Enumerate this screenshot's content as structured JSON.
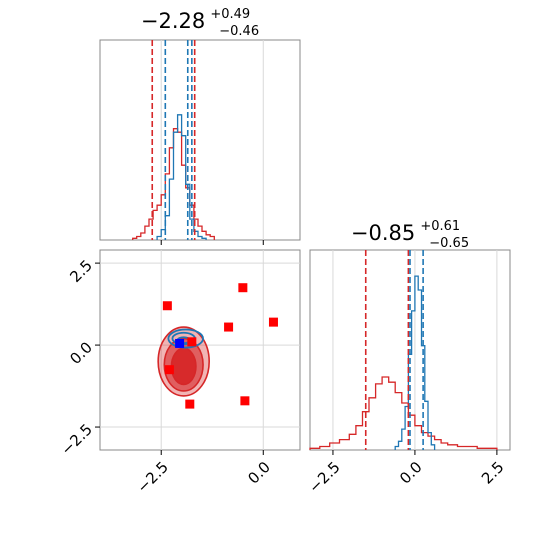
{
  "chart_data": {
    "type": "corner",
    "parameters": [
      {
        "title": {
          "median": "−2.28",
          "plus": "+0.49",
          "minus": "−0.46"
        },
        "range": [
          -4.0,
          0.9
        ],
        "ticks": [
          {
            "value": -2.5,
            "label": "−2.5"
          },
          {
            "value": 0.0,
            "label": "0.0"
          }
        ],
        "quantiles": {
          "red": [
            -2.72,
            -1.68
          ],
          "blue": [
            -2.4,
            -1.85,
            -1.75
          ]
        }
      },
      {
        "title": {
          "median": "−0.85",
          "plus": "+0.61",
          "minus": "−0.65"
        },
        "range": [
          -3.2,
          2.9
        ],
        "ticks": [
          {
            "value": -2.5,
            "label": "−2.5"
          },
          {
            "value": 0.0,
            "label": "0.0"
          },
          {
            "value": 2.5,
            "label": "2.5"
          }
        ],
        "quantiles": {
          "red": [
            -1.5,
            -0.2
          ],
          "blue": [
            -0.15,
            0.25
          ]
        }
      }
    ],
    "y_range_2d": [
      -3.2,
      2.9
    ],
    "y_ticks_2d": [
      {
        "value": -2.5,
        "label": "−2.5"
      },
      {
        "value": 0.0,
        "label": "0.0"
      },
      {
        "value": 2.5,
        "label": "2.5"
      }
    ],
    "series": [
      {
        "name": "",
        "color": "#d62728"
      },
      {
        "name": "",
        "color": "#1f77b4"
      }
    ],
    "hist1_red": {
      "edges": [
        -3.2,
        -3.1,
        -3.0,
        -2.9,
        -2.8,
        -2.7,
        -2.6,
        -2.5,
        -2.4,
        -2.3,
        -2.2,
        -2.1,
        -2.0,
        -1.9,
        -1.8,
        -1.7,
        -1.6,
        -1.5,
        -1.4,
        -1.3,
        -1.2
      ],
      "counts": [
        0.01,
        0.02,
        0.04,
        0.08,
        0.12,
        0.17,
        0.2,
        0.26,
        0.38,
        0.53,
        0.64,
        0.62,
        0.43,
        0.3,
        0.2,
        0.12,
        0.08,
        0.05,
        0.03,
        0.02
      ]
    },
    "hist1_blue": {
      "edges": [
        -2.6,
        -2.5,
        -2.4,
        -2.3,
        -2.2,
        -2.1,
        -2.0,
        -1.9,
        -1.8,
        -1.7,
        -1.6,
        -1.5,
        -1.4
      ],
      "counts": [
        0.02,
        0.06,
        0.14,
        0.35,
        0.62,
        0.72,
        0.6,
        0.32,
        0.12,
        0.05,
        0.02,
        0.01
      ]
    },
    "hist2_red": {
      "edges": [
        -3.2,
        -2.9,
        -2.6,
        -2.3,
        -2.0,
        -1.8,
        -1.6,
        -1.4,
        -1.2,
        -1.0,
        -0.8,
        -0.6,
        -0.4,
        -0.2,
        0.0,
        0.2,
        0.4,
        0.6,
        0.8,
        1.0,
        1.3,
        1.6,
        1.9,
        2.2,
        2.5
      ],
      "counts": [
        0.01,
        0.02,
        0.04,
        0.06,
        0.09,
        0.14,
        0.22,
        0.3,
        0.38,
        0.42,
        0.39,
        0.33,
        0.27,
        0.2,
        0.14,
        0.1,
        0.08,
        0.06,
        0.04,
        0.03,
        0.02,
        0.02,
        0.01,
        0.01
      ]
    },
    "hist2_blue": {
      "edges": [
        -0.6,
        -0.5,
        -0.4,
        -0.3,
        -0.2,
        -0.1,
        0.0,
        0.1,
        0.2,
        0.3,
        0.4,
        0.5,
        0.6
      ],
      "counts": [
        0.02,
        0.05,
        0.12,
        0.25,
        0.55,
        0.8,
        1.0,
        0.92,
        0.6,
        0.28,
        0.1,
        0.03
      ]
    },
    "hist_ymax": 1.15,
    "contours_red": [
      {
        "cx": -1.95,
        "cy": -0.5,
        "rx": 1.25,
        "ry": 2.1,
        "fill": "rgba(214,39,40,0.35)"
      },
      {
        "cx": -1.95,
        "cy": -0.6,
        "rx": 0.95,
        "ry": 1.6,
        "fill": "rgba(214,39,40,0.6)"
      },
      {
        "cx": -1.95,
        "cy": -0.65,
        "rx": 0.6,
        "ry": 1.1,
        "fill": "rgba(214,39,40,0.95)"
      }
    ],
    "contours_blue": [
      {
        "cx": -1.9,
        "cy": 0.2,
        "rx": 0.85,
        "ry": 0.55
      },
      {
        "cx": -1.95,
        "cy": 0.2,
        "rx": 0.55,
        "ry": 0.35
      },
      {
        "cx": -1.95,
        "cy": 0.15,
        "rx": 0.3,
        "ry": 0.18
      }
    ],
    "points_red": [
      [
        -2.35,
        1.2
      ],
      [
        -0.5,
        1.75
      ],
      [
        1.8,
        1.6
      ],
      [
        -0.85,
        0.55
      ],
      [
        0.25,
        0.7
      ],
      [
        -1.75,
        0.1
      ],
      [
        -2.3,
        -0.75
      ],
      [
        -1.8,
        -1.8
      ],
      [
        -0.45,
        -1.7
      ],
      [
        2.2,
        -0.5
      ]
    ],
    "points_blue": [
      [
        -2.05,
        0.05
      ]
    ]
  }
}
